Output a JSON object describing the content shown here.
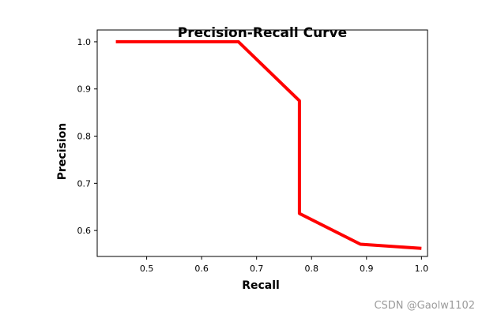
{
  "chart_data": {
    "type": "line",
    "title": "Precision-Recall Curve",
    "xlabel": "Recall",
    "ylabel": "Precision",
    "xlim": [
      0.41,
      1.011
    ],
    "ylim": [
      0.545,
      1.025
    ],
    "xticks": [
      0.5,
      0.6,
      0.7,
      0.8,
      0.9,
      1.0
    ],
    "xtick_labels": [
      "0.5",
      "0.6",
      "0.7",
      "0.8",
      "0.9",
      "1.0"
    ],
    "yticks": [
      0.6,
      0.7,
      0.8,
      0.9,
      1.0
    ],
    "ytick_labels": [
      "0.6",
      "0.7",
      "0.8",
      "0.9",
      "1.0"
    ],
    "grid": false,
    "series": [
      {
        "color": "#ff0000",
        "x": [
          0.444,
          0.667,
          0.778,
          0.778,
          0.889,
          1.0
        ],
        "y": [
          1.0,
          1.0,
          0.875,
          0.636,
          0.571,
          0.562
        ]
      }
    ]
  },
  "watermark": "CSDN @Gaolw1102"
}
